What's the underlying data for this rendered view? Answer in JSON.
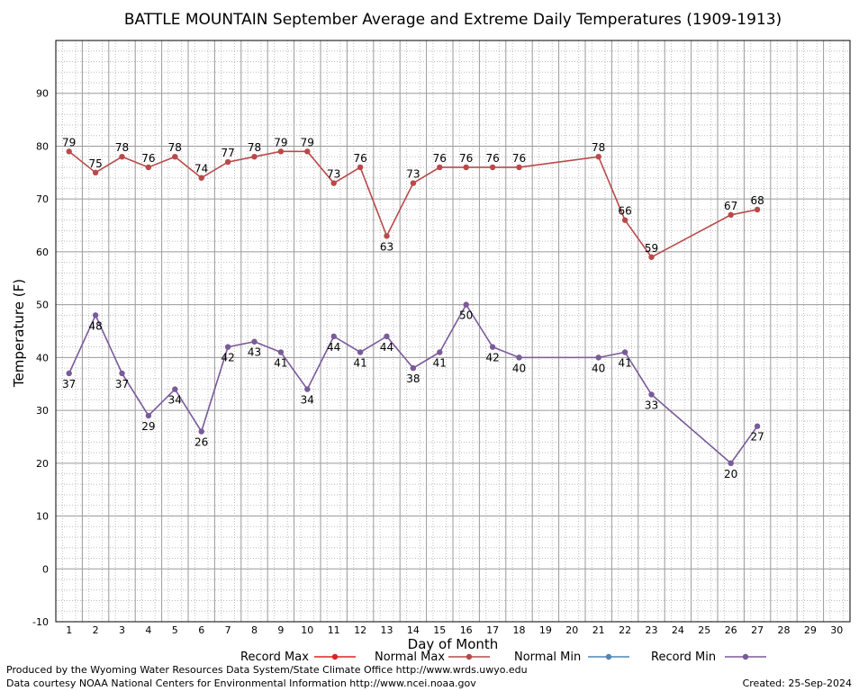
{
  "chart_data": {
    "type": "line",
    "title": "BATTLE MOUNTAIN September Average and Extreme Daily Temperatures (1909-1913)",
    "xlabel": "Day of Month",
    "ylabel": "Temperature (F)",
    "xlim": [
      0.5,
      30.5
    ],
    "ylim": [
      -10,
      100
    ],
    "x_ticks": [
      1,
      2,
      3,
      4,
      5,
      6,
      7,
      8,
      9,
      10,
      11,
      12,
      13,
      14,
      15,
      16,
      17,
      18,
      19,
      20,
      21,
      22,
      23,
      24,
      25,
      26,
      27,
      28,
      29,
      30
    ],
    "y_ticks": [
      -10,
      0,
      10,
      20,
      30,
      40,
      50,
      60,
      70,
      80,
      90
    ],
    "grid": true,
    "legend_position": "bottom",
    "legend": [
      {
        "name": "Record Max",
        "color": "#dd2222"
      },
      {
        "name": "Normal Max",
        "color": "#b84a4a"
      },
      {
        "name": "Normal Min",
        "color": "#4f86b8"
      },
      {
        "name": "Record Min",
        "color": "#7a5a9a"
      }
    ],
    "series": [
      {
        "name": "Normal Max",
        "color": "#b84a4a",
        "x": [
          1,
          2,
          3,
          4,
          5,
          6,
          7,
          8,
          9,
          10,
          11,
          12,
          13,
          14,
          15,
          16,
          17,
          18,
          21,
          22,
          23,
          26,
          27
        ],
        "values": [
          79,
          75,
          78,
          76,
          78,
          74,
          77,
          78,
          79,
          79,
          73,
          76,
          63,
          73,
          76,
          76,
          76,
          76,
          78,
          66,
          59,
          67,
          68
        ],
        "label_position": [
          "above",
          "above",
          "above",
          "above",
          "above",
          "above",
          "above",
          "above",
          "above",
          "above",
          "above",
          "above",
          "below",
          "above",
          "above",
          "above",
          "above",
          "above",
          "above",
          "above",
          "above",
          "above",
          "above"
        ]
      },
      {
        "name": "Record Min",
        "color": "#7a5a9a",
        "x": [
          1,
          2,
          3,
          4,
          5,
          6,
          7,
          8,
          9,
          10,
          11,
          12,
          13,
          14,
          15,
          16,
          17,
          18,
          21,
          22,
          23,
          26,
          27
        ],
        "values": [
          37,
          48,
          37,
          29,
          34,
          26,
          42,
          43,
          41,
          34,
          44,
          41,
          44,
          38,
          41,
          50,
          42,
          40,
          40,
          41,
          33,
          20,
          27
        ],
        "label_position": [
          "below",
          "below",
          "below",
          "below",
          "below",
          "below",
          "below",
          "below",
          "below",
          "below",
          "below",
          "below",
          "below",
          "below",
          "below",
          "below",
          "below",
          "below",
          "below",
          "below",
          "below",
          "below",
          "below"
        ]
      }
    ]
  },
  "footer": {
    "produced_by": "Produced by the Wyoming Water Resources Data System/State Climate Office http://www.wrds.uwyo.edu",
    "courtesy": "Data courtesy NOAA National Centers for Environmental Information http://www.ncei.noaa.gov",
    "created": "Created:  25-Sep-2024"
  }
}
